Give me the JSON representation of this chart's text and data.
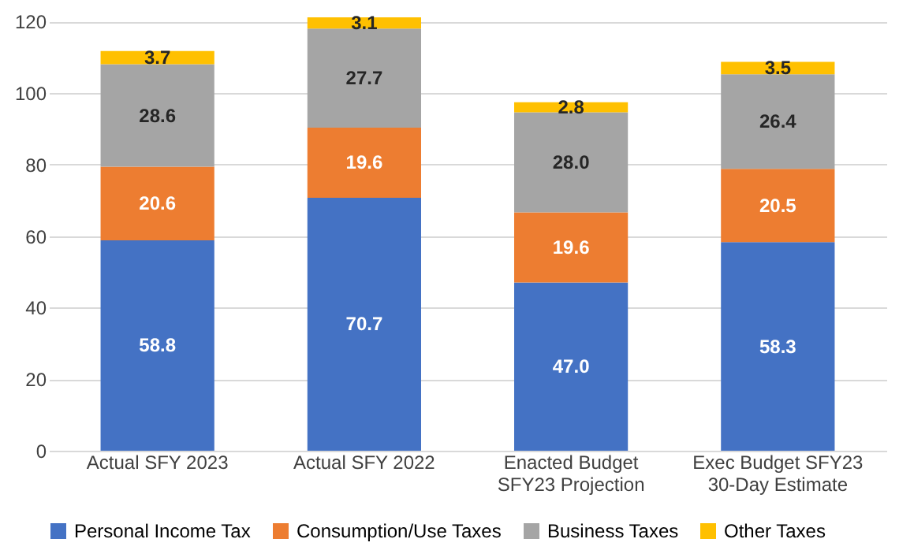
{
  "chart_data": {
    "type": "bar",
    "stacked": true,
    "grid": "y",
    "legend": "bottom",
    "categories": [
      "Actual SFY 2023",
      "Actual SFY 2022",
      "Enacted Budget SFY23 Projection",
      "Exec Budget SFY23 30-Day Estimate"
    ],
    "ylim": [
      0,
      122
    ],
    "yticks": [
      0,
      20,
      40,
      60,
      80,
      100,
      120
    ],
    "series": [
      {
        "name": "Personal Income Tax",
        "color": "#4472c4",
        "values": [
          58.8,
          70.7,
          47.0,
          58.3
        ],
        "value_labels": [
          "58.8",
          "70.7",
          "47.0",
          "58.3"
        ]
      },
      {
        "name": "Consumption/Use Taxes",
        "color": "#ed7d31",
        "values": [
          20.6,
          19.6,
          19.6,
          20.5
        ],
        "value_labels": [
          "20.6",
          "19.6",
          "19.6",
          "20.5"
        ]
      },
      {
        "name": "Business Taxes",
        "color": "#a5a5a5",
        "values": [
          28.6,
          27.7,
          28.0,
          26.4
        ],
        "value_labels": [
          "28.6",
          "27.7",
          "28.0",
          "26.4"
        ]
      },
      {
        "name": "Other Taxes",
        "color": "#ffc000",
        "values": [
          3.7,
          3.1,
          2.8,
          3.5
        ],
        "value_labels": [
          "3.7",
          "3.1",
          "2.8",
          "3.5"
        ]
      }
    ]
  }
}
